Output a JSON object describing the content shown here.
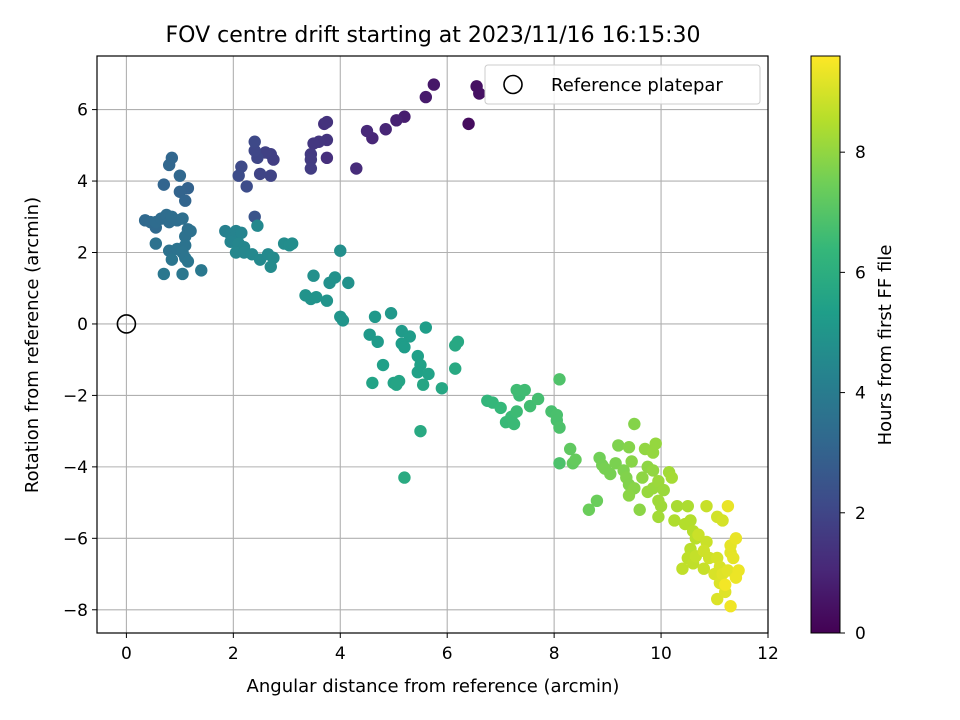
{
  "chart_data": {
    "type": "scatter",
    "title": "FOV centre drift starting at 2023/11/16 16:15:30",
    "xlabel": "Angular distance from reference (arcmin)",
    "ylabel": "Rotation from reference (arcmin)",
    "xlim": [
      -0.55,
      12.0
    ],
    "ylim": [
      -8.65,
      7.5
    ],
    "xticks": [
      0,
      2,
      4,
      6,
      8,
      10,
      12
    ],
    "yticks": [
      -8,
      -6,
      -4,
      -2,
      0,
      2,
      4,
      6
    ],
    "grid": true,
    "legend": {
      "location": "top-right",
      "entries": [
        "Reference platepar"
      ]
    },
    "reference_point": {
      "x": 0,
      "y": 0,
      "marker": "open-circle"
    },
    "colorbar": {
      "label": "Hours from first FF file",
      "range": [
        0,
        9.6
      ],
      "ticks": [
        0,
        2,
        4,
        6,
        8
      ],
      "colormap": "viridis",
      "stops": [
        "#440154",
        "#482878",
        "#3e4a89",
        "#31688e",
        "#26828e",
        "#1f9e89",
        "#35b779",
        "#6ece58",
        "#b5de2b",
        "#fde725"
      ]
    },
    "points": [
      [
        6.4,
        5.6,
        0.3
      ],
      [
        6.55,
        6.65,
        0.4
      ],
      [
        6.6,
        6.45,
        0.45
      ],
      [
        5.75,
        6.7,
        0.6
      ],
      [
        5.6,
        6.35,
        0.7
      ],
      [
        5.2,
        5.8,
        0.8
      ],
      [
        5.05,
        5.7,
        0.9
      ],
      [
        4.85,
        5.45,
        1.0
      ],
      [
        4.6,
        5.2,
        1.05
      ],
      [
        4.5,
        5.4,
        1.1
      ],
      [
        4.3,
        4.35,
        1.2
      ],
      [
        3.75,
        4.65,
        1.3
      ],
      [
        3.7,
        5.6,
        1.35
      ],
      [
        3.75,
        5.65,
        1.4
      ],
      [
        3.75,
        5.15,
        1.45
      ],
      [
        3.6,
        5.1,
        1.5
      ],
      [
        3.5,
        5.05,
        1.55
      ],
      [
        3.45,
        4.75,
        1.6
      ],
      [
        3.45,
        4.6,
        1.65
      ],
      [
        3.45,
        4.35,
        1.7
      ],
      [
        2.75,
        4.6,
        1.75
      ],
      [
        2.7,
        4.75,
        1.8
      ],
      [
        2.6,
        4.8,
        1.85
      ],
      [
        2.7,
        4.15,
        1.9
      ],
      [
        2.5,
        4.2,
        1.95
      ],
      [
        2.45,
        4.65,
        2.0
      ],
      [
        2.4,
        4.85,
        2.05
      ],
      [
        2.4,
        5.1,
        2.1
      ],
      [
        2.15,
        4.4,
        2.15
      ],
      [
        2.1,
        4.15,
        2.2
      ],
      [
        2.25,
        3.85,
        2.25
      ],
      [
        2.4,
        3.0,
        2.5
      ],
      [
        1.15,
        3.8,
        3.0
      ],
      [
        1.0,
        3.7,
        3.05
      ],
      [
        1.1,
        3.45,
        3.1
      ],
      [
        0.7,
        3.9,
        3.1
      ],
      [
        0.85,
        4.65,
        3.15
      ],
      [
        0.8,
        4.45,
        3.15
      ],
      [
        1.0,
        4.15,
        3.2
      ],
      [
        0.35,
        2.9,
        3.25
      ],
      [
        0.45,
        2.85,
        3.3
      ],
      [
        0.55,
        2.7,
        3.3
      ],
      [
        0.55,
        2.85,
        3.35
      ],
      [
        0.65,
        2.95,
        3.35
      ],
      [
        0.75,
        3.05,
        3.4
      ],
      [
        0.8,
        2.85,
        3.4
      ],
      [
        0.85,
        3.0,
        3.45
      ],
      [
        0.95,
        2.9,
        3.45
      ],
      [
        1.05,
        2.95,
        3.5
      ],
      [
        1.15,
        2.65,
        3.5
      ],
      [
        1.1,
        2.45,
        3.55
      ],
      [
        1.2,
        2.6,
        3.55
      ],
      [
        0.55,
        2.25,
        3.6
      ],
      [
        0.8,
        2.05,
        3.6
      ],
      [
        0.95,
        2.1,
        3.65
      ],
      [
        1.1,
        2.2,
        3.65
      ],
      [
        1.05,
        2.0,
        3.7
      ],
      [
        1.1,
        1.85,
        3.7
      ],
      [
        0.85,
        1.8,
        3.75
      ],
      [
        1.15,
        1.75,
        3.75
      ],
      [
        0.7,
        1.4,
        3.8
      ],
      [
        1.05,
        1.4,
        3.8
      ],
      [
        1.4,
        1.5,
        3.85
      ],
      [
        1.85,
        2.6,
        4.2
      ],
      [
        1.95,
        2.5,
        4.25
      ],
      [
        2.05,
        2.6,
        4.3
      ],
      [
        2.0,
        2.4,
        4.3
      ],
      [
        2.15,
        2.55,
        4.35
      ],
      [
        1.95,
        2.3,
        4.35
      ],
      [
        2.1,
        2.25,
        4.4
      ],
      [
        2.2,
        2.15,
        4.4
      ],
      [
        2.05,
        2.0,
        4.45
      ],
      [
        2.2,
        2.0,
        4.45
      ],
      [
        2.35,
        1.95,
        4.5
      ],
      [
        2.45,
        2.75,
        4.5
      ],
      [
        2.5,
        1.8,
        4.55
      ],
      [
        2.65,
        1.95,
        4.55
      ],
      [
        2.75,
        1.85,
        4.6
      ],
      [
        2.7,
        1.6,
        4.6
      ],
      [
        2.95,
        2.25,
        4.65
      ],
      [
        3.05,
        2.2,
        4.7
      ],
      [
        3.1,
        2.25,
        4.7
      ],
      [
        4.0,
        2.05,
        4.75
      ],
      [
        3.5,
        1.35,
        4.8
      ],
      [
        3.8,
        1.15,
        4.8
      ],
      [
        3.9,
        1.3,
        4.85
      ],
      [
        4.15,
        1.15,
        4.85
      ],
      [
        3.35,
        0.8,
        4.9
      ],
      [
        3.45,
        0.7,
        4.9
      ],
      [
        3.55,
        0.75,
        4.95
      ],
      [
        3.75,
        0.65,
        4.95
      ],
      [
        4.0,
        0.2,
        5.0
      ],
      [
        4.05,
        0.1,
        5.0
      ],
      [
        4.65,
        0.2,
        5.1
      ],
      [
        4.95,
        0.3,
        5.1
      ],
      [
        4.55,
        -0.3,
        5.15
      ],
      [
        4.7,
        -0.5,
        5.2
      ],
      [
        5.15,
        -0.2,
        5.2
      ],
      [
        5.3,
        -0.35,
        5.25
      ],
      [
        5.15,
        -0.55,
        5.3
      ],
      [
        5.2,
        -0.65,
        5.3
      ],
      [
        5.6,
        -0.1,
        5.35
      ],
      [
        4.8,
        -1.15,
        5.4
      ],
      [
        5.45,
        -0.9,
        5.4
      ],
      [
        5.5,
        -1.15,
        5.45
      ],
      [
        5.45,
        -1.35,
        5.45
      ],
      [
        5.65,
        -1.4,
        5.5
      ],
      [
        4.6,
        -1.65,
        5.55
      ],
      [
        5.0,
        -1.65,
        5.55
      ],
      [
        5.1,
        -1.6,
        5.6
      ],
      [
        5.05,
        -1.7,
        5.6
      ],
      [
        5.55,
        -1.7,
        5.65
      ],
      [
        5.9,
        -1.8,
        5.7
      ],
      [
        6.2,
        -0.5,
        5.75
      ],
      [
        6.15,
        -0.6,
        5.75
      ],
      [
        6.15,
        -1.25,
        5.8
      ],
      [
        5.5,
        -3.0,
        5.8
      ],
      [
        5.2,
        -4.3,
        5.85
      ],
      [
        6.75,
        -2.15,
        6.3
      ],
      [
        6.85,
        -2.2,
        6.35
      ],
      [
        7.0,
        -2.35,
        6.4
      ],
      [
        7.1,
        -2.75,
        6.45
      ],
      [
        7.2,
        -2.6,
        6.5
      ],
      [
        7.25,
        -2.8,
        6.5
      ],
      [
        7.3,
        -2.45,
        6.55
      ],
      [
        7.35,
        -2.0,
        6.55
      ],
      [
        7.3,
        -1.85,
        6.6
      ],
      [
        7.45,
        -1.85,
        6.6
      ],
      [
        7.55,
        -2.3,
        6.65
      ],
      [
        7.7,
        -2.1,
        6.7
      ],
      [
        7.95,
        -2.45,
        6.75
      ],
      [
        8.05,
        -2.55,
        6.8
      ],
      [
        8.05,
        -2.7,
        6.8
      ],
      [
        8.1,
        -2.9,
        6.85
      ],
      [
        8.1,
        -3.9,
        6.85
      ],
      [
        8.1,
        -1.55,
        6.9
      ],
      [
        8.3,
        -3.5,
        7.2
      ],
      [
        8.35,
        -3.9,
        7.25
      ],
      [
        8.4,
        -3.8,
        7.3
      ],
      [
        8.65,
        -5.2,
        7.4
      ],
      [
        8.8,
        -4.95,
        7.4
      ],
      [
        8.85,
        -3.75,
        7.5
      ],
      [
        8.9,
        -3.95,
        7.55
      ],
      [
        8.95,
        -4.05,
        7.6
      ],
      [
        9.05,
        -4.2,
        7.6
      ],
      [
        9.15,
        -3.9,
        7.65
      ],
      [
        9.2,
        -3.4,
        7.7
      ],
      [
        9.3,
        -4.1,
        7.7
      ],
      [
        9.35,
        -4.3,
        7.75
      ],
      [
        9.4,
        -4.5,
        7.75
      ],
      [
        9.4,
        -3.45,
        7.8
      ],
      [
        9.5,
        -2.8,
        7.8
      ],
      [
        9.45,
        -3.85,
        7.85
      ],
      [
        9.5,
        -4.6,
        7.85
      ],
      [
        9.4,
        -4.8,
        7.9
      ],
      [
        9.6,
        -5.2,
        7.9
      ],
      [
        9.65,
        -4.3,
        7.95
      ],
      [
        9.75,
        -4.0,
        7.95
      ],
      [
        9.7,
        -3.5,
        8.0
      ],
      [
        9.85,
        -4.1,
        8.0
      ],
      [
        9.85,
        -3.6,
        8.05
      ],
      [
        9.9,
        -3.35,
        8.05
      ],
      [
        9.75,
        -4.7,
        8.1
      ],
      [
        9.85,
        -4.6,
        8.1
      ],
      [
        9.95,
        -4.4,
        8.15
      ],
      [
        10.05,
        -4.65,
        8.15
      ],
      [
        9.95,
        -4.95,
        8.2
      ],
      [
        10.0,
        -5.1,
        8.2
      ],
      [
        9.95,
        -5.4,
        8.25
      ],
      [
        10.15,
        -4.15,
        8.25
      ],
      [
        10.2,
        -4.3,
        8.3
      ],
      [
        10.3,
        -5.1,
        8.35
      ],
      [
        10.5,
        -5.1,
        8.4
      ],
      [
        10.25,
        -5.5,
        8.45
      ],
      [
        10.45,
        -5.6,
        8.5
      ],
      [
        10.55,
        -5.5,
        8.5
      ],
      [
        10.6,
        -5.8,
        8.55
      ],
      [
        10.65,
        -6.0,
        8.6
      ],
      [
        10.55,
        -6.3,
        8.6
      ],
      [
        10.5,
        -6.55,
        8.65
      ],
      [
        10.4,
        -6.85,
        8.7
      ],
      [
        10.6,
        -6.7,
        8.7
      ],
      [
        10.65,
        -6.5,
        8.75
      ],
      [
        10.8,
        -6.85,
        8.8
      ],
      [
        10.85,
        -5.1,
        8.8
      ],
      [
        10.7,
        -5.9,
        8.85
      ],
      [
        10.85,
        -6.1,
        8.85
      ],
      [
        10.8,
        -6.35,
        8.9
      ],
      [
        10.9,
        -6.55,
        8.9
      ],
      [
        11.05,
        -5.4,
        8.95
      ],
      [
        11.15,
        -5.5,
        9.0
      ],
      [
        11.05,
        -6.55,
        9.0
      ],
      [
        11.0,
        -7.0,
        9.05
      ],
      [
        11.1,
        -6.8,
        9.05
      ],
      [
        11.1,
        -7.25,
        9.1
      ],
      [
        11.05,
        -7.7,
        9.1
      ],
      [
        11.2,
        -7.5,
        9.15
      ],
      [
        11.15,
        -7.0,
        9.15
      ],
      [
        11.25,
        -6.9,
        9.2
      ],
      [
        11.3,
        -6.4,
        9.2
      ],
      [
        11.35,
        -6.55,
        9.25
      ],
      [
        11.3,
        -6.2,
        9.25
      ],
      [
        11.25,
        -5.1,
        9.3
      ],
      [
        11.4,
        -6.0,
        9.3
      ],
      [
        11.4,
        -7.1,
        9.35
      ],
      [
        11.45,
        -6.9,
        9.35
      ],
      [
        11.3,
        -7.9,
        9.4
      ],
      [
        11.2,
        -7.3,
        9.45
      ]
    ]
  }
}
